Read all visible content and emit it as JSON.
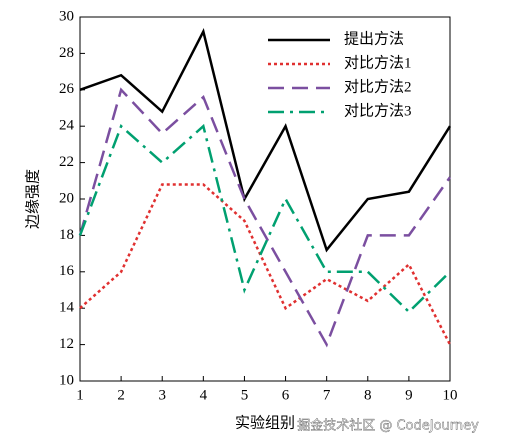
{
  "chart_data": {
    "type": "line",
    "x_label": "实验组别",
    "y_label": "边缘强度",
    "x": [
      1,
      2,
      3,
      4,
      5,
      6,
      7,
      8,
      9,
      10
    ],
    "series": [
      {
        "name": "提出方法",
        "color": "#000000",
        "style": "solid",
        "values": [
          26,
          26.8,
          24.8,
          29.2,
          20,
          24,
          17.2,
          20,
          20.4,
          24
        ]
      },
      {
        "name": "对比方法1",
        "color": "#e03030",
        "style": "dotted",
        "values": [
          14,
          16,
          20.8,
          20.8,
          18.8,
          14,
          15.6,
          14.4,
          16.4,
          12
        ]
      },
      {
        "name": "对比方法2",
        "color": "#7b4fa0",
        "style": "dashed",
        "values": [
          18,
          26,
          23.6,
          25.6,
          20,
          16,
          12,
          18,
          18,
          21.2
        ]
      },
      {
        "name": "对比方法3",
        "color": "#00a070",
        "style": "dashdot",
        "values": [
          18,
          24,
          22,
          24,
          15,
          20,
          16,
          16,
          13.8,
          16
        ]
      }
    ],
    "xlim": [
      1,
      10
    ],
    "xticks": [
      1,
      2,
      3,
      4,
      5,
      6,
      7,
      8,
      9,
      10
    ],
    "ylim": [
      10,
      30
    ],
    "yticks": [
      10,
      12,
      14,
      16,
      18,
      20,
      22,
      24,
      26,
      28,
      30
    ],
    "legend": "upper right",
    "watermark": "掘金技术社区 @ CodeJourney"
  }
}
